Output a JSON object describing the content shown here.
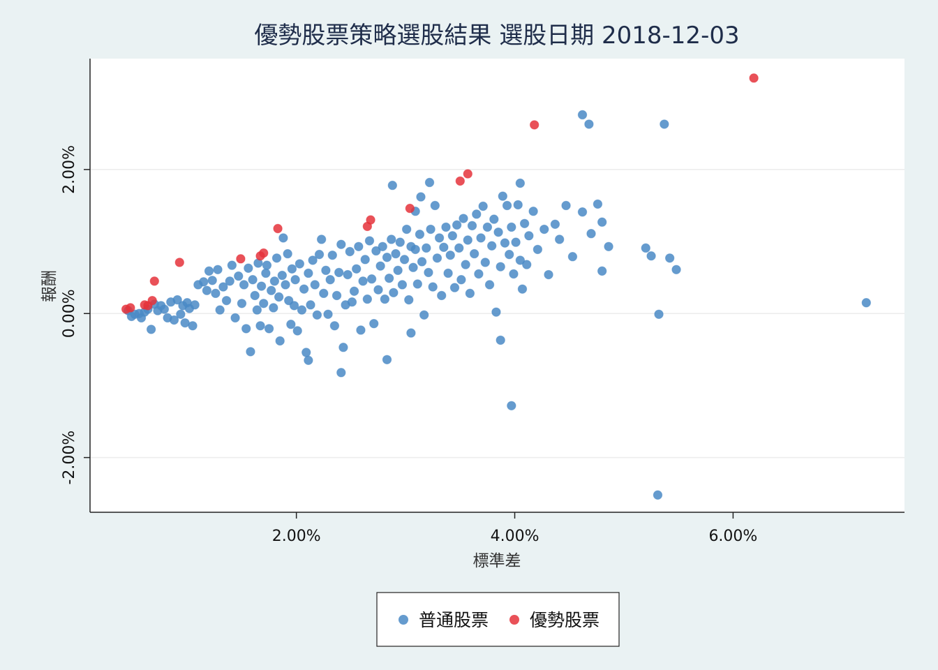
{
  "chart_data": {
    "type": "scatter",
    "title": "優勢股票策略選股結果  選股日期 2018-12-03",
    "xlabel": "標準差",
    "ylabel": "報酬",
    "xlim": [
      0.0011,
      0.0757
    ],
    "ylim": [
      -0.0276,
      0.0354
    ],
    "x_ticks": [
      {
        "value": 0.02,
        "label": "2.00%"
      },
      {
        "value": 0.04,
        "label": "4.00%"
      },
      {
        "value": 0.06,
        "label": "6.00%"
      }
    ],
    "y_ticks": [
      {
        "value": 0.02,
        "label": "2.00%"
      },
      {
        "value": 0.0,
        "label": "0.00%"
      },
      {
        "value": -0.02,
        "label": "-2.00%"
      }
    ],
    "grid": "horizontal",
    "legend_position": "bottom",
    "colors": {
      "普通股票": "#4a8ac6",
      "優勢股票": "#e5323b"
    },
    "series": [
      {
        "name": "普通股票",
        "points": [
          [
            0.0046,
            0.0004
          ],
          [
            0.0049,
            -0.0004
          ],
          [
            0.0052,
            -0.0001
          ],
          [
            0.0056,
            0.0
          ],
          [
            0.0058,
            -0.0006
          ],
          [
            0.0061,
            0.0002
          ],
          [
            0.0064,
            0.0006
          ],
          [
            0.0067,
            -0.0022
          ],
          [
            0.007,
            0.0013
          ],
          [
            0.0073,
            0.0004
          ],
          [
            0.0076,
            0.0011
          ],
          [
            0.0079,
            0.0006
          ],
          [
            0.0082,
            -0.0006
          ],
          [
            0.0085,
            0.0016
          ],
          [
            0.0088,
            -0.0009
          ],
          [
            0.0091,
            0.0019
          ],
          [
            0.0094,
            -0.0001
          ],
          [
            0.0096,
            0.0011
          ],
          [
            0.0098,
            -0.0013
          ],
          [
            0.01,
            0.0015
          ],
          [
            0.0102,
            0.0007
          ],
          [
            0.0105,
            -0.0017
          ],
          [
            0.0107,
            0.0012
          ],
          [
            0.011,
            0.004
          ],
          [
            0.0115,
            0.0044
          ],
          [
            0.0118,
            0.0032
          ],
          [
            0.012,
            0.0059
          ],
          [
            0.0123,
            0.0046
          ],
          [
            0.0126,
            0.0028
          ],
          [
            0.0128,
            0.0061
          ],
          [
            0.013,
            0.0005
          ],
          [
            0.0133,
            0.0037
          ],
          [
            0.0136,
            0.0018
          ],
          [
            0.0139,
            0.0045
          ],
          [
            0.0141,
            0.0067
          ],
          [
            0.0144,
            -0.0006
          ],
          [
            0.0147,
            0.0052
          ],
          [
            0.015,
            0.0014
          ],
          [
            0.0152,
            0.004
          ],
          [
            0.0154,
            -0.0021
          ],
          [
            0.0156,
            0.0063
          ],
          [
            0.0158,
            -0.0053
          ],
          [
            0.016,
            0.0047
          ],
          [
            0.0162,
            0.0025
          ],
          [
            0.0164,
            0.0005
          ],
          [
            0.0165,
            0.007
          ],
          [
            0.0167,
            -0.0017
          ],
          [
            0.0168,
            0.0038
          ],
          [
            0.017,
            0.0014
          ],
          [
            0.0172,
            0.0056
          ],
          [
            0.0173,
            0.0067
          ],
          [
            0.0175,
            -0.0021
          ],
          [
            0.0177,
            0.0032
          ],
          [
            0.0179,
            0.0008
          ],
          [
            0.018,
            0.0045
          ],
          [
            0.0182,
            0.0077
          ],
          [
            0.0184,
            0.0023
          ],
          [
            0.0185,
            -0.0038
          ],
          [
            0.0187,
            0.0053
          ],
          [
            0.0188,
            0.0105
          ],
          [
            0.019,
            0.004
          ],
          [
            0.0192,
            0.0083
          ],
          [
            0.0193,
            0.0018
          ],
          [
            0.0195,
            -0.0015
          ],
          [
            0.0196,
            0.0062
          ],
          [
            0.0198,
            0.0011
          ],
          [
            0.0199,
            0.0047
          ],
          [
            0.0201,
            -0.0024
          ],
          [
            0.0203,
            0.0069
          ],
          [
            0.0205,
            0.0005
          ],
          [
            0.0207,
            0.0034
          ],
          [
            0.0209,
            -0.0054
          ],
          [
            0.0211,
            0.0056
          ],
          [
            0.0213,
            0.0012
          ],
          [
            0.0215,
            0.0074
          ],
          [
            0.0217,
            0.004
          ],
          [
            0.0219,
            -0.0002
          ],
          [
            0.0221,
            0.0082
          ],
          [
            0.0223,
            0.0103
          ],
          [
            0.0225,
            0.0028
          ],
          [
            0.0227,
            0.006
          ],
          [
            0.0229,
            -0.0001
          ],
          [
            0.0231,
            0.0047
          ],
          [
            0.0233,
            0.0081
          ],
          [
            0.0235,
            -0.0017
          ],
          [
            0.0237,
            0.0025
          ],
          [
            0.0239,
            0.0057
          ],
          [
            0.0241,
            0.0096
          ],
          [
            0.0243,
            -0.0047
          ],
          [
            0.0245,
            0.0012
          ],
          [
            0.0247,
            0.0054
          ],
          [
            0.0249,
            0.0086
          ],
          [
            0.0251,
            0.0016
          ],
          [
            0.0253,
            0.0031
          ],
          [
            0.0255,
            0.0062
          ],
          [
            0.0257,
            0.0093
          ],
          [
            0.0259,
            -0.0023
          ],
          [
            0.0261,
            0.0045
          ],
          [
            0.0263,
            0.0075
          ],
          [
            0.0265,
            0.002
          ],
          [
            0.0267,
            0.0101
          ],
          [
            0.0269,
            0.0048
          ],
          [
            0.0271,
            -0.0014
          ],
          [
            0.0273,
            0.0087
          ],
          [
            0.0275,
            0.0033
          ],
          [
            0.0277,
            0.0066
          ],
          [
            0.0279,
            0.0093
          ],
          [
            0.0281,
            0.002
          ],
          [
            0.0283,
            0.0078
          ],
          [
            0.0285,
            0.0049
          ],
          [
            0.0287,
            0.0103
          ],
          [
            0.0289,
            0.0029
          ],
          [
            0.0291,
            0.0083
          ],
          [
            0.0293,
            0.006
          ],
          [
            0.0295,
            0.0099
          ],
          [
            0.0297,
            0.004
          ],
          [
            0.0299,
            0.0075
          ],
          [
            0.0301,
            0.0117
          ],
          [
            0.0303,
            0.0019
          ],
          [
            0.0305,
            0.0093
          ],
          [
            0.0307,
            0.0064
          ],
          [
            0.0309,
            0.0089
          ],
          [
            0.0311,
            0.0041
          ],
          [
            0.0313,
            0.011
          ],
          [
            0.0315,
            0.0072
          ],
          [
            0.0317,
            -0.0002
          ],
          [
            0.0319,
            0.0091
          ],
          [
            0.0321,
            0.0057
          ],
          [
            0.0323,
            0.0117
          ],
          [
            0.0325,
            0.0037
          ],
          [
            0.0327,
            0.015
          ],
          [
            0.0329,
            0.0077
          ],
          [
            0.0331,
            0.0105
          ],
          [
            0.0333,
            0.0025
          ],
          [
            0.0335,
            0.0092
          ],
          [
            0.0337,
            0.012
          ],
          [
            0.0339,
            0.0056
          ],
          [
            0.0341,
            0.0081
          ],
          [
            0.0343,
            0.0108
          ],
          [
            0.0345,
            0.0036
          ],
          [
            0.0347,
            0.0123
          ],
          [
            0.0349,
            0.0091
          ],
          [
            0.0351,
            0.0047
          ],
          [
            0.0353,
            0.0132
          ],
          [
            0.0355,
            0.0068
          ],
          [
            0.0357,
            0.0102
          ],
          [
            0.0359,
            0.0028
          ],
          [
            0.0361,
            0.0122
          ],
          [
            0.0363,
            0.0083
          ],
          [
            0.0365,
            0.0138
          ],
          [
            0.0367,
            0.0055
          ],
          [
            0.0369,
            0.0105
          ],
          [
            0.0371,
            0.0149
          ],
          [
            0.0373,
            0.0071
          ],
          [
            0.0375,
            0.012
          ],
          [
            0.0377,
            0.004
          ],
          [
            0.0379,
            0.0094
          ],
          [
            0.0381,
            0.0131
          ],
          [
            0.0383,
            0.0002
          ],
          [
            0.0385,
            0.0113
          ],
          [
            0.0387,
            0.0065
          ],
          [
            0.0389,
            0.0163
          ],
          [
            0.0391,
            0.0098
          ],
          [
            0.0393,
            0.015
          ],
          [
            0.0395,
            0.0082
          ],
          [
            0.0397,
            0.012
          ],
          [
            0.0399,
            0.0055
          ],
          [
            0.0401,
            0.0099
          ],
          [
            0.0403,
            0.0151
          ],
          [
            0.0405,
            0.0074
          ],
          [
            0.0407,
            0.0034
          ],
          [
            0.0409,
            0.0125
          ],
          [
            0.0411,
            0.0068
          ],
          [
            0.0413,
            0.0108
          ],
          [
            0.0417,
            0.0142
          ],
          [
            0.0421,
            0.0089
          ],
          [
            0.0427,
            0.0117
          ],
          [
            0.0431,
            0.0054
          ],
          [
            0.0437,
            0.0124
          ],
          [
            0.0441,
            0.0103
          ],
          [
            0.0447,
            0.015
          ],
          [
            0.0453,
            0.0079
          ],
          [
            0.0462,
            0.0141
          ],
          [
            0.047,
            0.0111
          ],
          [
            0.0476,
            0.0152
          ],
          [
            0.048,
            0.0059
          ],
          [
            0.0468,
            0.0263
          ],
          [
            0.0462,
            0.0276
          ],
          [
            0.048,
            0.0127
          ],
          [
            0.0486,
            0.0093
          ],
          [
            0.052,
            0.0091
          ],
          [
            0.0525,
            0.008
          ],
          [
            0.0537,
            0.0263
          ],
          [
            0.0542,
            0.0077
          ],
          [
            0.0548,
            0.0061
          ],
          [
            0.0532,
            -0.0001
          ],
          [
            0.0531,
            -0.0252
          ],
          [
            0.0387,
            -0.0037
          ],
          [
            0.0397,
            -0.0128
          ],
          [
            0.0305,
            -0.0027
          ],
          [
            0.0283,
            -0.0064
          ],
          [
            0.0241,
            -0.0082
          ],
          [
            0.0211,
            -0.0065
          ],
          [
            0.0722,
            0.0015
          ],
          [
            0.0405,
            0.0181
          ],
          [
            0.0322,
            0.0182
          ],
          [
            0.0288,
            0.0178
          ],
          [
            0.0314,
            0.0162
          ],
          [
            0.0309,
            0.0142
          ]
        ]
      },
      {
        "name": "優勢股票",
        "points": [
          [
            0.0044,
            0.0006
          ],
          [
            0.0048,
            0.0008
          ],
          [
            0.0061,
            0.0012
          ],
          [
            0.0064,
            0.0011
          ],
          [
            0.0068,
            0.0018
          ],
          [
            0.007,
            0.0045
          ],
          [
            0.0093,
            0.0071
          ],
          [
            0.0149,
            0.0076
          ],
          [
            0.0167,
            0.008
          ],
          [
            0.017,
            0.0084
          ],
          [
            0.0183,
            0.0118
          ],
          [
            0.0265,
            0.0121
          ],
          [
            0.0268,
            0.013
          ],
          [
            0.0304,
            0.0146
          ],
          [
            0.035,
            0.0184
          ],
          [
            0.0357,
            0.0194
          ],
          [
            0.0418,
            0.0262
          ],
          [
            0.0619,
            0.0327
          ]
        ]
      }
    ],
    "legend": [
      "普通股票",
      "優勢股票"
    ]
  }
}
